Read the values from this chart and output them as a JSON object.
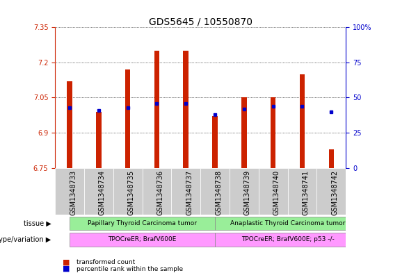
{
  "title": "GDS5645 / 10550870",
  "samples": [
    "GSM1348733",
    "GSM1348734",
    "GSM1348735",
    "GSM1348736",
    "GSM1348737",
    "GSM1348738",
    "GSM1348739",
    "GSM1348740",
    "GSM1348741",
    "GSM1348742"
  ],
  "red_values": [
    7.12,
    6.99,
    7.17,
    7.25,
    7.25,
    6.97,
    7.05,
    7.05,
    7.15,
    6.83
  ],
  "blue_values": [
    43,
    41,
    43,
    46,
    46,
    38,
    42,
    44,
    44,
    40
  ],
  "ymin": 6.75,
  "ymax": 7.35,
  "y2min": 0,
  "y2max": 100,
  "yticks": [
    6.75,
    6.9,
    7.05,
    7.2,
    7.35
  ],
  "y2ticks": [
    0,
    25,
    50,
    75,
    100
  ],
  "bar_color": "#CC2200",
  "dot_color": "#0000CC",
  "tissue_groups": [
    {
      "label": "Papillary Thyroid Carcinoma tumor",
      "start": 0,
      "end": 5,
      "color": "#99EE99"
    },
    {
      "label": "Anaplastic Thyroid Carcinoma tumor",
      "start": 5,
      "end": 10,
      "color": "#99EE99"
    }
  ],
  "genotype_groups": [
    {
      "label": "TPOCreER; BrafV600E",
      "start": 0,
      "end": 5,
      "color": "#FF99FF"
    },
    {
      "label": "TPOCreER; BrafV600E; p53 -/-",
      "start": 5,
      "end": 10,
      "color": "#FF99FF"
    }
  ],
  "tissue_label": "tissue",
  "genotype_label": "genotype/variation",
  "legend_red": "transformed count",
  "legend_blue": "percentile rank within the sample",
  "bar_width": 0.18,
  "title_fontsize": 10,
  "tick_fontsize": 7,
  "label_fontsize": 7,
  "annot_fontsize": 6.5
}
